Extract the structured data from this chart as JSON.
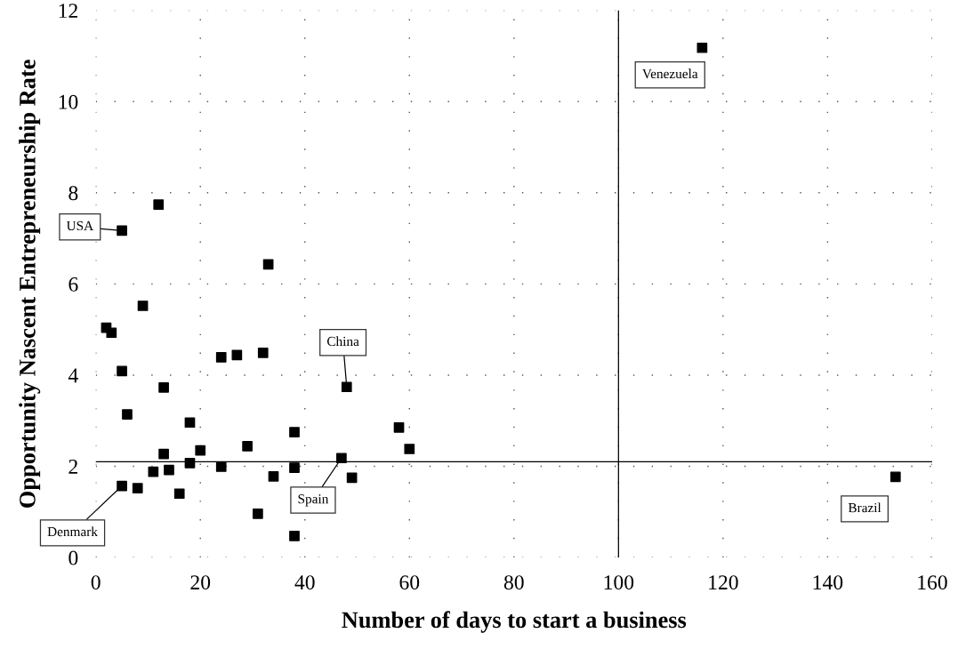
{
  "chart_data": {
    "type": "scatter",
    "xlabel": "Number of days to start a business",
    "ylabel": "Opportunity Nascent Entrepreneurship Rate",
    "series": [
      {
        "color": "#000000",
        "marker": "square",
        "x": [
          5,
          12,
          33,
          9,
          2,
          3,
          5,
          24,
          27,
          32,
          13,
          48,
          6,
          18,
          38,
          58,
          29,
          20,
          60,
          13,
          47,
          18,
          24,
          38,
          14,
          11,
          34,
          49,
          5,
          8,
          16,
          31,
          38,
          116,
          153
        ],
        "values": [
          7.17,
          7.74,
          6.43,
          5.52,
          5.04,
          4.93,
          4.09,
          4.39,
          4.44,
          4.49,
          3.73,
          3.74,
          3.14,
          2.96,
          2.75,
          2.85,
          2.44,
          2.35,
          2.38,
          2.27,
          2.18,
          2.07,
          1.99,
          1.97,
          1.92,
          1.88,
          1.78,
          1.75,
          1.57,
          1.52,
          1.4,
          0.96,
          0.47,
          11.18,
          1.77
        ]
      }
    ],
    "annotations": [
      {
        "text": "USA",
        "x": 5,
        "y": 7.17
      },
      {
        "text": "China",
        "x": 48,
        "y": 3.74
      },
      {
        "text": "Spain",
        "x": 47,
        "y": 2.18
      },
      {
        "text": "Denmark",
        "x": 5,
        "y": 1.57
      },
      {
        "text": "Venezuela",
        "x": 116,
        "y": 11.18
      },
      {
        "text": "Brazil",
        "x": 153,
        "y": 1.77
      }
    ],
    "ref_lines": [
      {
        "axis": "x",
        "value": 100,
        "color": "#000000"
      },
      {
        "axis": "y",
        "value": 2.1,
        "color": "#000000"
      }
    ],
    "xlim": [
      0,
      160
    ],
    "ylim": [
      0,
      12
    ],
    "xticks": [
      0,
      20,
      40,
      60,
      80,
      100,
      120,
      140,
      160
    ],
    "yticks": [
      0,
      2,
      4,
      6,
      8,
      10,
      12
    ],
    "grid": true,
    "legend": false
  }
}
